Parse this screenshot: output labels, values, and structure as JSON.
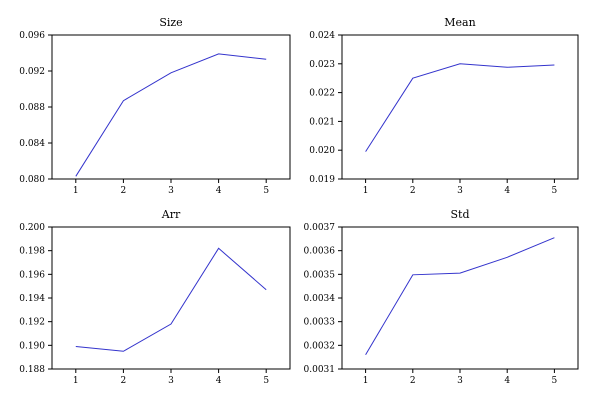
{
  "chart_data": [
    {
      "type": "line",
      "title": "Size",
      "x": [
        1,
        2,
        3,
        4,
        5
      ],
      "values": [
        0.0803,
        0.0887,
        0.0918,
        0.0939,
        0.0933
      ],
      "xticks": [
        "1",
        "2",
        "3",
        "4",
        "5"
      ],
      "yticks": [
        "0.080",
        "0.084",
        "0.088",
        "0.092",
        "0.096"
      ],
      "xlim": [
        0.5,
        5.5
      ],
      "ylim": [
        0.08,
        0.096
      ],
      "color": "#3333cc",
      "grid": false
    },
    {
      "type": "line",
      "title": "Mean",
      "x": [
        1,
        2,
        3,
        4,
        5
      ],
      "values": [
        0.01995,
        0.0225,
        0.023,
        0.02288,
        0.02296
      ],
      "xticks": [
        "1",
        "2",
        "3",
        "4",
        "5"
      ],
      "yticks": [
        "0.019",
        "0.020",
        "0.021",
        "0.022",
        "0.023",
        "0.024"
      ],
      "xlim": [
        0.5,
        5.5
      ],
      "ylim": [
        0.019,
        0.024
      ],
      "color": "#3333cc",
      "grid": false
    },
    {
      "type": "line",
      "title": "Arr",
      "x": [
        1,
        2,
        3,
        4,
        5
      ],
      "values": [
        0.1899,
        0.1895,
        0.1918,
        0.1982,
        0.1947
      ],
      "xticks": [
        "1",
        "2",
        "3",
        "4",
        "5"
      ],
      "yticks": [
        "0.188",
        "0.190",
        "0.192",
        "0.194",
        "0.196",
        "0.198",
        "0.200"
      ],
      "xlim": [
        0.5,
        5.5
      ],
      "ylim": [
        0.188,
        0.2
      ],
      "color": "#3333cc",
      "grid": false
    },
    {
      "type": "line",
      "title": "Std",
      "x": [
        1,
        2,
        3,
        4,
        5
      ],
      "values": [
        0.00316,
        0.003498,
        0.003505,
        0.003572,
        0.003655
      ],
      "xticks": [
        "1",
        "2",
        "3",
        "4",
        "5"
      ],
      "yticks": [
        "0.0031",
        "0.0032",
        "0.0033",
        "0.0034",
        "0.0035",
        "0.0036",
        "0.0037"
      ],
      "xlim": [
        0.5,
        5.5
      ],
      "ylim": [
        0.0031,
        0.0037
      ],
      "color": "#3333cc",
      "grid": false
    }
  ]
}
